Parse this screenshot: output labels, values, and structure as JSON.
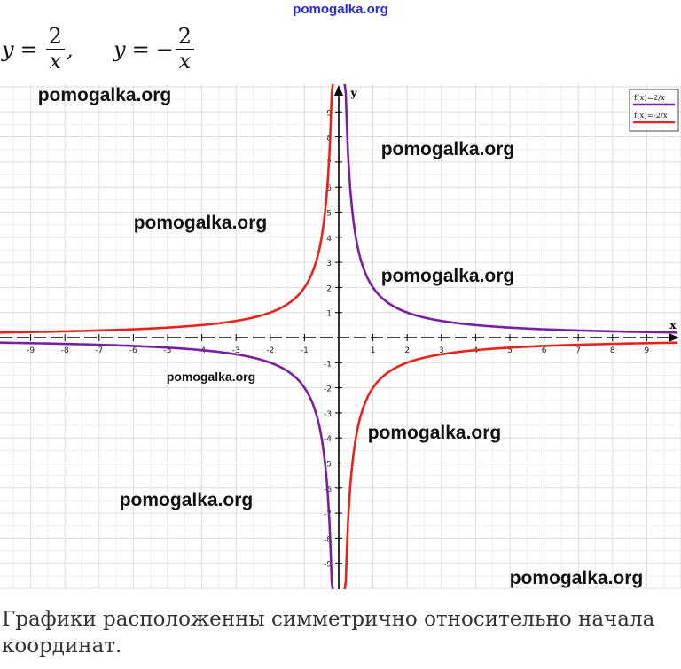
{
  "header": {
    "site": "pomogalka.org"
  },
  "formulas": [
    {
      "lhs": "y",
      "sign": "",
      "num": "2",
      "den": "x",
      "tail": ","
    },
    {
      "lhs": "y",
      "sign": "−",
      "num": "2",
      "den": "x",
      "tail": ""
    }
  ],
  "watermark": "pomogalka.org",
  "conclusion": "Графики расположенны симметрично относительно начала координат.",
  "colors": {
    "series1": "#7a1fa2",
    "series2": "#e8231c",
    "grid": "#dcdcdc",
    "axis": "#000000"
  },
  "chart_data": {
    "type": "line",
    "title": "",
    "xlabel": "x",
    "ylabel": "y",
    "xlim": [
      -9.5,
      9.5
    ],
    "ylim": [
      -10,
      10
    ],
    "grid": true,
    "legend_position": "top-right",
    "x_ticks": [
      -9,
      -8,
      -7,
      -6,
      -5,
      -4,
      -3,
      -2,
      -1,
      1,
      2,
      3,
      4,
      5,
      6,
      7,
      8,
      9
    ],
    "y_ticks": [
      -9,
      -8,
      -7,
      -6,
      -5,
      -4,
      -3,
      -2,
      -1,
      1,
      2,
      3,
      4,
      5,
      6,
      7,
      8,
      9
    ],
    "series": [
      {
        "name": "f(x)=2/x",
        "formula": "2/x",
        "color": "#7a1fa2"
      },
      {
        "name": "f(x)=-2/x",
        "formula": "-2/x",
        "color": "#e8231c"
      }
    ]
  }
}
